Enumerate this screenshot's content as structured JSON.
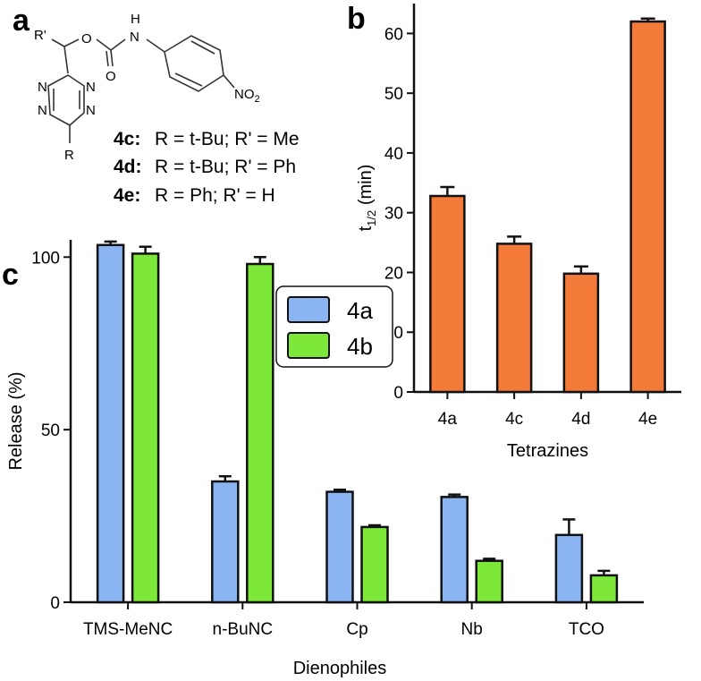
{
  "panels": {
    "a": {
      "letter": "a",
      "structure_labels": {
        "r_prime": "R'",
        "oxygen_1": "O",
        "oxygen_2": "O",
        "nh_n": "N",
        "nh_h": "H",
        "no2": "NO",
        "no2_sub": "2",
        "ring_n": "N",
        "r": "R"
      },
      "compounds": [
        {
          "id": "4c",
          "id_label": "4c:",
          "desc": "R = t-Bu; R' = Me"
        },
        {
          "id": "4d",
          "id_label": "4d:",
          "desc": "R = t-Bu; R' = Ph"
        },
        {
          "id": "4e",
          "id_label": "4e:",
          "desc": "R = Ph; R' = H"
        }
      ]
    },
    "b": {
      "letter": "b"
    },
    "c": {
      "letter": "c"
    }
  },
  "chart_data": [
    {
      "panel": "b",
      "type": "bar",
      "title": "",
      "xlabel": "Tetrazines",
      "ylabel_main": "t",
      "ylabel_sub": "1/2",
      "ylabel_tail": " (min)",
      "categories": [
        "4a",
        "4c",
        "4d",
        "4e"
      ],
      "series": [
        {
          "values": [
            32.8,
            24.8,
            19.8,
            62.0
          ],
          "errors": [
            1.5,
            1.2,
            1.2,
            0.5
          ]
        }
      ],
      "colors": [
        "#f47a3a"
      ],
      "ylim": [
        0,
        65
      ],
      "yticks": [
        0,
        10,
        20,
        30,
        40,
        50,
        60
      ],
      "ytick_labels": [
        "0",
        "10",
        "20",
        "30",
        "40",
        "50",
        "60"
      ],
      "grid": false
    },
    {
      "panel": "c",
      "type": "bar",
      "title": "",
      "xlabel": "Dienophiles",
      "ylabel": "Release (%)",
      "categories": [
        "TMS-MeNC",
        "n-BuNC",
        "Cp",
        "Nb",
        "TCO"
      ],
      "series": [
        {
          "name": "4a",
          "values": [
            103.5,
            35.0,
            32.0,
            30.5,
            19.5
          ],
          "errors": [
            1.0,
            1.5,
            0.6,
            0.7,
            4.5
          ]
        },
        {
          "name": "4b",
          "values": [
            101.0,
            98.0,
            21.8,
            12.0,
            7.8
          ],
          "errors": [
            2.0,
            2.0,
            0.5,
            0.6,
            1.3
          ]
        }
      ],
      "colors": [
        "#8ab4f2",
        "#7ee83a"
      ],
      "ylim": [
        0,
        105
      ],
      "yticks": [
        0,
        50,
        100
      ],
      "ytick_labels": [
        "0",
        "50",
        "100"
      ],
      "legend": "top-right",
      "grid": false
    }
  ]
}
